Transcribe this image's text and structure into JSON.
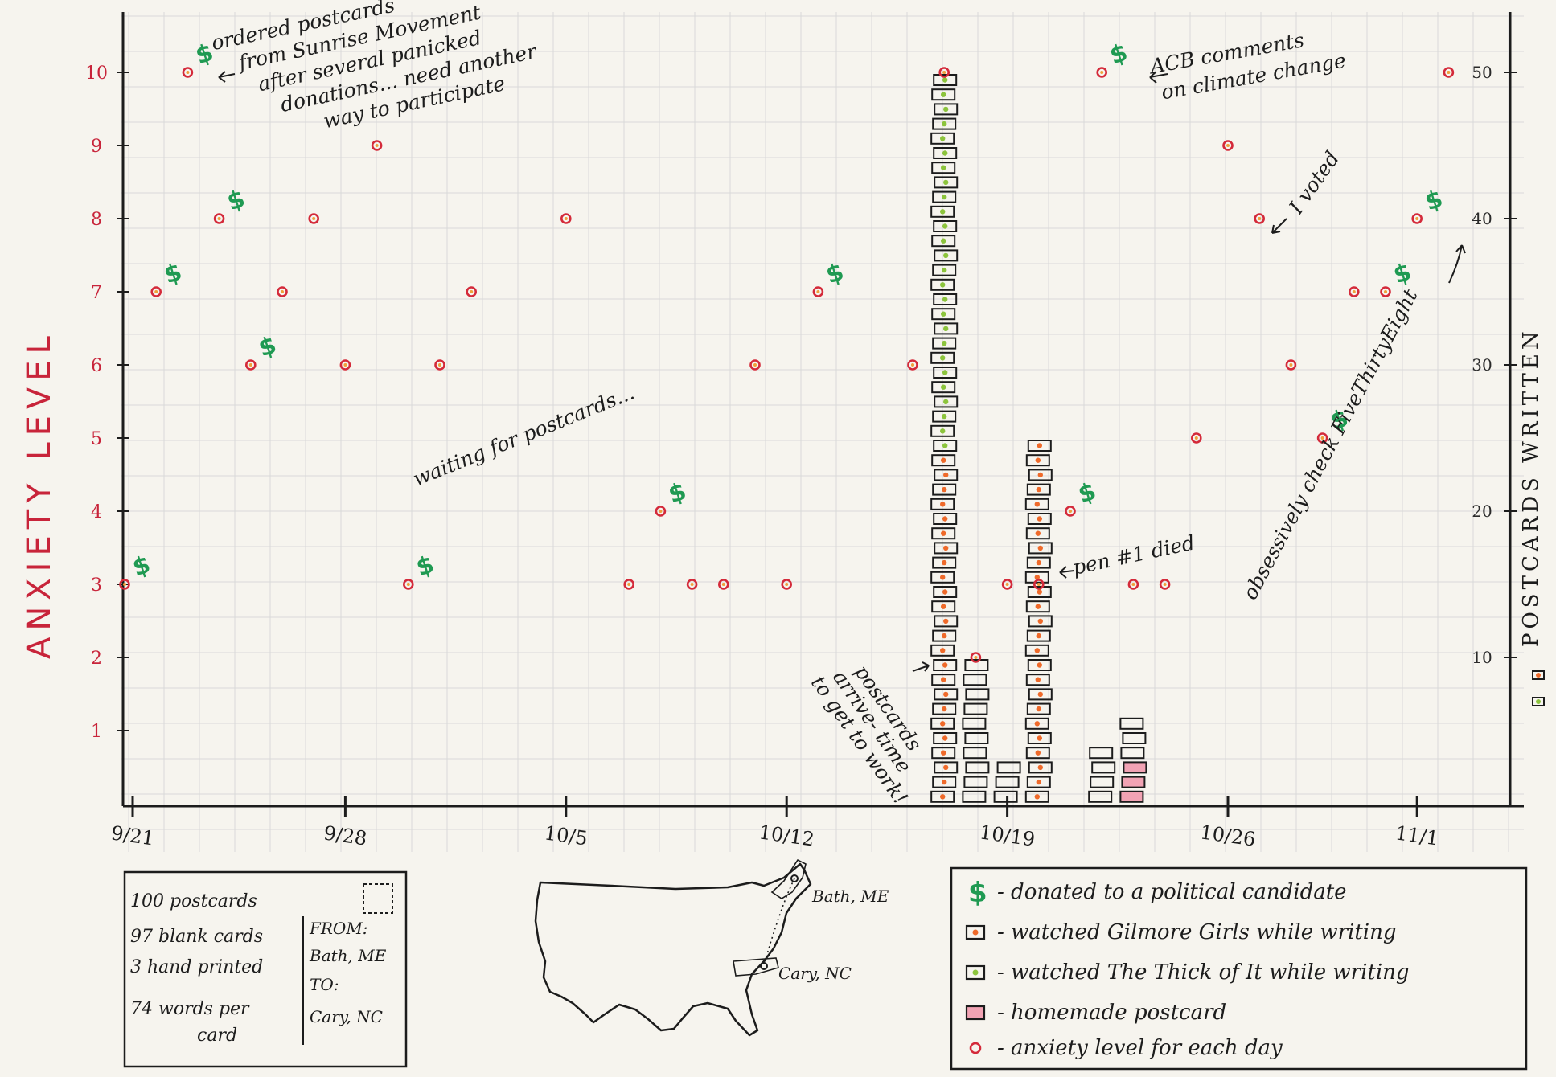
{
  "chart_data": {
    "type": "scatter",
    "ylabel": "ANXIETY LEVEL",
    "y2label": "POSTCARDS WRITTEN",
    "ylim": [
      0,
      10
    ],
    "y2lim": [
      0,
      50
    ],
    "y_ticks": [
      "1",
      "2",
      "3",
      "4",
      "5",
      "6",
      "7",
      "8",
      "9",
      "10"
    ],
    "y2_ticks": [
      "10",
      "20",
      "30",
      "40",
      "50"
    ],
    "x_tick_labels": [
      {
        "day": 0,
        "label": "9/21"
      },
      {
        "day": 7,
        "label": "9/28"
      },
      {
        "day": 14,
        "label": "10/5"
      },
      {
        "day": 21,
        "label": "10/12"
      },
      {
        "day": 28,
        "label": "10/19"
      },
      {
        "day": 35,
        "label": "10/26"
      },
      {
        "day": 41,
        "label": "11/1"
      }
    ],
    "anxiety": [
      {
        "day": 0,
        "value": 3,
        "donated": true
      },
      {
        "day": 1,
        "value": 7,
        "donated": true
      },
      {
        "day": 2,
        "value": 10,
        "donated": true
      },
      {
        "day": 3,
        "value": 8,
        "donated": true
      },
      {
        "day": 4,
        "value": 6,
        "donated": true
      },
      {
        "day": 5,
        "value": 7,
        "donated": false
      },
      {
        "day": 6,
        "value": 8,
        "donated": false
      },
      {
        "day": 7,
        "value": 6,
        "donated": false
      },
      {
        "day": 8,
        "value": 9,
        "donated": false
      },
      {
        "day": 9,
        "value": 3,
        "donated": true
      },
      {
        "day": 10,
        "value": 6,
        "donated": false
      },
      {
        "day": 11,
        "value": 7,
        "donated": false
      },
      {
        "day": 14,
        "value": 8,
        "donated": false
      },
      {
        "day": 16,
        "value": 3,
        "donated": false
      },
      {
        "day": 17,
        "value": 4,
        "donated": true
      },
      {
        "day": 18,
        "value": 3,
        "donated": false
      },
      {
        "day": 19,
        "value": 3,
        "donated": false
      },
      {
        "day": 20,
        "value": 6,
        "donated": false
      },
      {
        "day": 21,
        "value": 3,
        "donated": false
      },
      {
        "day": 22,
        "value": 7,
        "donated": true
      },
      {
        "day": 25,
        "value": 6,
        "donated": false
      },
      {
        "day": 26,
        "value": 10,
        "donated": false
      },
      {
        "day": 27,
        "value": 2,
        "donated": false
      },
      {
        "day": 28,
        "value": 3,
        "donated": false
      },
      {
        "day": 29,
        "value": 3,
        "donated": false
      },
      {
        "day": 30,
        "value": 4,
        "donated": true
      },
      {
        "day": 31,
        "value": 10,
        "donated": true
      },
      {
        "day": 32,
        "value": 3,
        "donated": false
      },
      {
        "day": 33,
        "value": 3,
        "donated": false
      },
      {
        "day": 34,
        "value": 5,
        "donated": false
      },
      {
        "day": 35,
        "value": 9,
        "donated": false
      },
      {
        "day": 36,
        "value": 8,
        "donated": false
      },
      {
        "day": 37,
        "value": 6,
        "donated": false
      },
      {
        "day": 38,
        "value": 5,
        "donated": true
      },
      {
        "day": 39,
        "value": 7,
        "donated": false
      },
      {
        "day": 40,
        "value": 7,
        "donated": true
      },
      {
        "day": 41,
        "value": 8,
        "donated": true
      },
      {
        "day": 42,
        "value": 10,
        "donated": false
      }
    ],
    "postcards_written": [
      {
        "day": 26,
        "gilmore": 24,
        "thick": 26,
        "homemade": 0
      },
      {
        "day": 27,
        "gilmore": 0,
        "thick": 0,
        "homemade": 0,
        "blank": 10
      },
      {
        "day": 28,
        "gilmore": 0,
        "thick": 0,
        "homemade": 0,
        "blank": 3
      },
      {
        "day": 29,
        "gilmore": 25,
        "thick": 0,
        "homemade": 0
      },
      {
        "day": 31,
        "gilmore": 0,
        "thick": 0,
        "homemade": 0,
        "blank": 4
      },
      {
        "day": 32,
        "gilmore": 0,
        "thick": 0,
        "homemade": 3,
        "blank": 3
      }
    ],
    "annotations": [
      "ordered postcards",
      "from Sunrise Movement",
      "after several panicked",
      "donations... need another",
      "way to participate",
      "ACB comments",
      "on climate change",
      "waiting for postcards...",
      "postcards",
      "arrive- time",
      "to get to work!",
      "pen #1 died",
      "I voted",
      "obsessively check FiveThirtyEight"
    ],
    "legend": [
      {
        "symbol": "$",
        "label": "donated to a political candidate"
      },
      {
        "symbol": "box-orange",
        "label": "watched Gilmore Girls while writing"
      },
      {
        "symbol": "box-green",
        "label": "watched The Thick of It while writing"
      },
      {
        "symbol": "box-pink",
        "label": "homemade postcard"
      },
      {
        "symbol": "dot-red",
        "label": "anxiety level for each day"
      }
    ],
    "colors": {
      "anxiety": "#d42a3a",
      "donation": "#1f9a52",
      "gilmore": "#ef6a2a",
      "thick": "#8cc43c",
      "homemade": "#f2a3b4",
      "axis": "#1c1c1c",
      "grid": "#d9d9d9"
    }
  },
  "info_card": {
    "lines": [
      "100 postcards",
      "97 blank cards",
      "3 hand printed",
      "74 words per",
      "card"
    ],
    "from_label": "FROM:",
    "from_value": "Bath, ME",
    "to_label": "TO:",
    "to_value": "Cary, NC"
  },
  "map": {
    "origin": "Bath, ME",
    "destination": "Cary, NC"
  }
}
